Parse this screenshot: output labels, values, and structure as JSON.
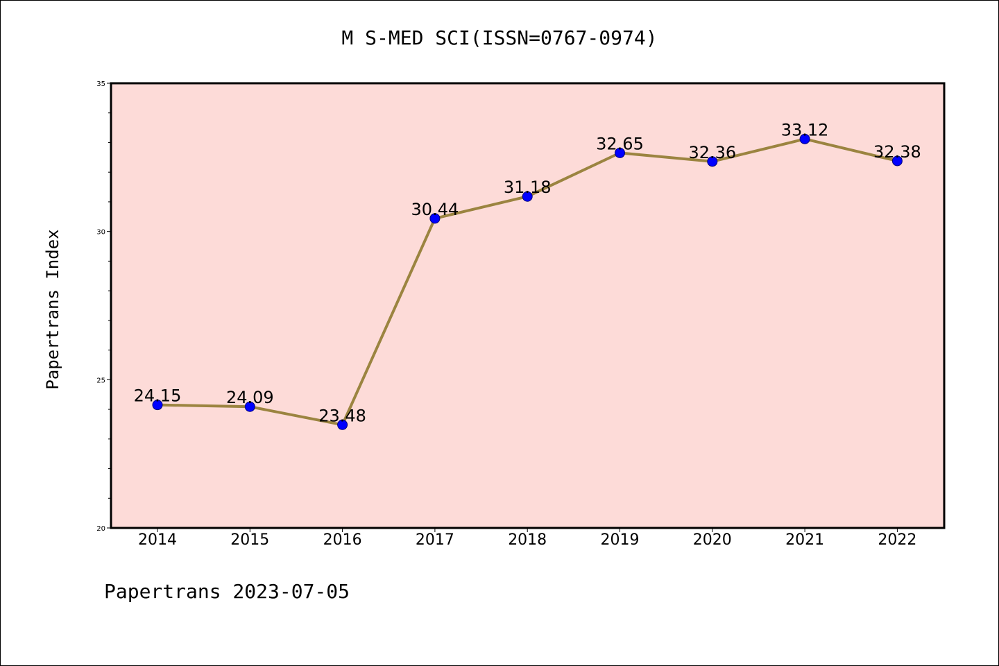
{
  "chart_data": {
    "type": "line",
    "title": "M S-MED SCI(ISSN=0767-0974)",
    "ylabel": "Papertrans Index",
    "xlabel": "",
    "categories": [
      "2014",
      "2015",
      "2016",
      "2017",
      "2018",
      "2019",
      "2020",
      "2021",
      "2022"
    ],
    "series": [
      {
        "values": [
          24.15,
          24.09,
          23.48,
          30.44,
          31.18,
          32.65,
          32.36,
          33.12,
          32.38
        ]
      }
    ],
    "data_labels": [
      "24.15",
      "24.09",
      "23.48",
      "30.44",
      "31.18",
      "32.65",
      "32.36",
      "33.12",
      "32.38"
    ],
    "ylim": [
      20,
      35
    ],
    "yticks": [
      20,
      25,
      30,
      35
    ],
    "grid": false,
    "line_color": "#9b8440",
    "marker_color": "#0000ff",
    "plot_background": "#fddbd8"
  },
  "footer": "Papertrans 2023-07-05"
}
